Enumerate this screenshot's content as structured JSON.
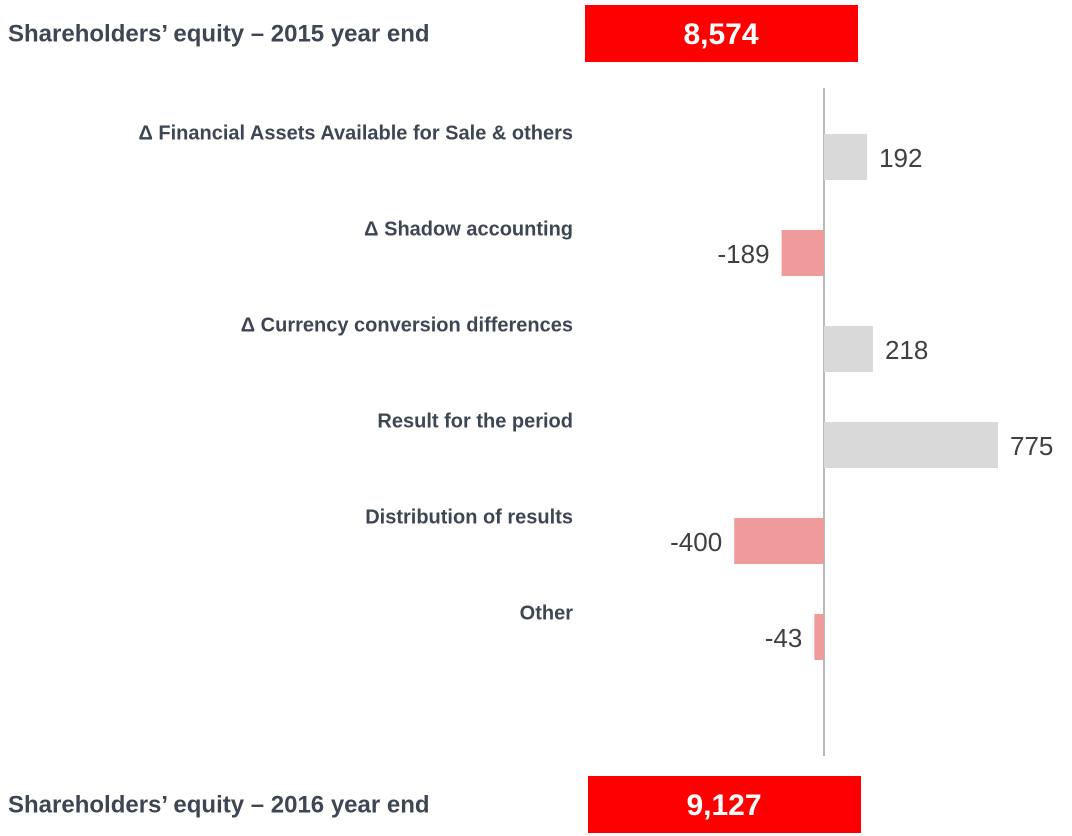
{
  "chart_data": {
    "type": "bar",
    "orientation": "horizontal",
    "categories": [
      "Δ Financial Assets Available for Sale & others",
      "Δ Shadow accounting",
      "Δ Currency conversion differences",
      "Result for the period",
      "Distribution of results",
      "Other"
    ],
    "values": [
      192,
      -189,
      218,
      775,
      -400,
      -43
    ],
    "positive_color": "#d9d9d9",
    "negative_color": "#ef9b9b",
    "xlim": [
      -600,
      1000
    ],
    "totals": {
      "categories": [
        "Shareholders’ equity – 2015 year end",
        "Shareholders’ equity – 2016 year end"
      ],
      "values": [
        8574,
        9127
      ],
      "value_labels": [
        "8,574",
        "9,127"
      ],
      "color": "#ff0000"
    }
  }
}
